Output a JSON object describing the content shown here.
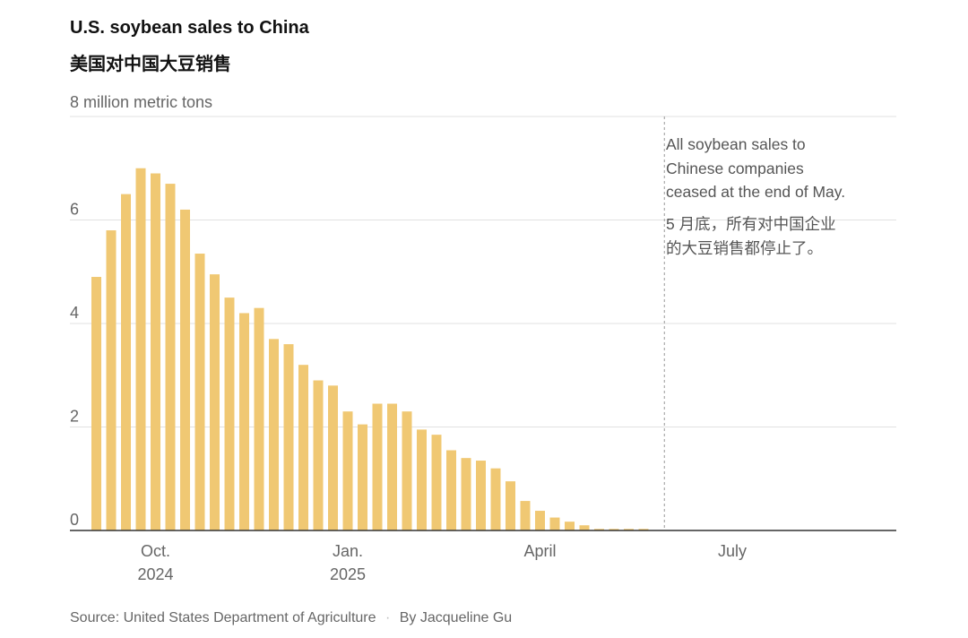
{
  "chart_data": {
    "type": "bar",
    "title": "U.S. soybean sales to China",
    "subtitle": "美国对中国大豆销售",
    "ylabel": "8 million metric tons",
    "ylim": [
      0,
      8
    ],
    "yticks": [
      0,
      2,
      4,
      6,
      8
    ],
    "ytick_labels": [
      "0",
      "2",
      "4",
      "6",
      ""
    ],
    "grid": true,
    "xticks": [
      {
        "label": "Oct.",
        "sub": "2024",
        "week": 4
      },
      {
        "label": "Jan.",
        "sub": "2025",
        "week": 17
      },
      {
        "label": "April",
        "sub": "",
        "week": 30
      },
      {
        "label": "July",
        "sub": "",
        "week": 43
      }
    ],
    "values": [
      4.9,
      5.8,
      6.5,
      7.0,
      6.9,
      6.7,
      6.2,
      5.35,
      4.95,
      4.5,
      4.2,
      4.3,
      3.7,
      3.6,
      3.2,
      2.9,
      2.8,
      2.3,
      2.05,
      2.45,
      2.45,
      2.3,
      1.95,
      1.85,
      1.55,
      1.4,
      1.35,
      1.2,
      0.95,
      0.57,
      0.38,
      0.25,
      0.17,
      0.1,
      0.03,
      0.03,
      0.03,
      0.03
    ],
    "total_weeks": 56,
    "annotation_week": 38.5,
    "annotation": {
      "en": [
        "All soybean sales to",
        "Chinese companies",
        "ceased at the end of May."
      ],
      "zh": [
        "5 月底，所有对中国企业",
        "的大豆销售都停止了。"
      ]
    },
    "bar_color": "#f0c873",
    "source": "Source: United States Department of Agriculture",
    "byline": "By Jacqueline Gu"
  }
}
